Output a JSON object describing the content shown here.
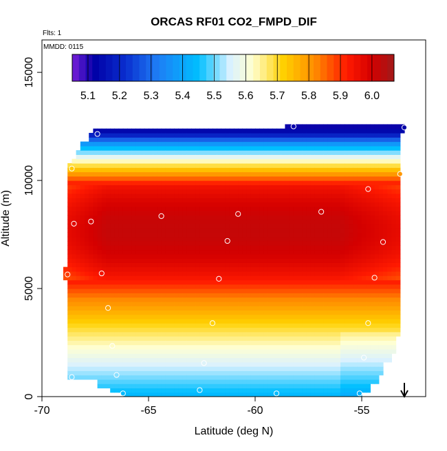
{
  "chart_data": {
    "type": "heatmap",
    "title": "ORCAS RF01 CO2_FMPD_DIF",
    "flights_label": "Flts: 1",
    "date_label": "MMDD: 0115",
    "xlabel": "Latitude (deg N)",
    "ylabel": "Altitude (m)",
    "xlim": [
      -70,
      -52
    ],
    "ylim": [
      0,
      16500
    ],
    "x_ticks": [
      -70,
      -65,
      -60,
      -55
    ],
    "x_tick_labels": [
      "-70",
      "-65",
      "-60",
      "-55"
    ],
    "y_ticks": [
      0,
      5000,
      10000,
      15000
    ],
    "y_tick_labels": [
      "0",
      "5000",
      "10000",
      "15000"
    ],
    "colorbar": {
      "min": 5.05,
      "max": 6.07,
      "ticks": [
        5.1,
        5.2,
        5.3,
        5.4,
        5.5,
        5.6,
        5.7,
        5.8,
        5.9,
        6.0
      ],
      "tick_labels": [
        "5.1",
        "5.2",
        "5.3",
        "5.4",
        "5.5",
        "5.6",
        "5.7",
        "5.8",
        "5.9",
        "6.0"
      ],
      "stops": [
        {
          "v": 5.05,
          "c": "#7a1fd9"
        },
        {
          "v": 5.12,
          "c": "#0000a6"
        },
        {
          "v": 5.22,
          "c": "#0a2fcf"
        },
        {
          "v": 5.32,
          "c": "#1e7cf5"
        },
        {
          "v": 5.45,
          "c": "#00bfff"
        },
        {
          "v": 5.55,
          "c": "#d9f1ff"
        },
        {
          "v": 5.62,
          "c": "#ffffd2"
        },
        {
          "v": 5.72,
          "c": "#ffd000"
        },
        {
          "v": 5.82,
          "c": "#ff8a00"
        },
        {
          "v": 5.92,
          "c": "#ff1a00"
        },
        {
          "v": 6.0,
          "c": "#d40000"
        },
        {
          "v": 6.07,
          "c": "#a01a1a"
        }
      ]
    },
    "sample_points": [
      {
        "lat": -68.8,
        "alt": 5650
      },
      {
        "lat": -68.6,
        "alt": 10550
      },
      {
        "lat": -68.5,
        "alt": 8000
      },
      {
        "lat": -68.6,
        "alt": 900
      },
      {
        "lat": -67.4,
        "alt": 12150
      },
      {
        "lat": -67.7,
        "alt": 8100
      },
      {
        "lat": -67.2,
        "alt": 5700
      },
      {
        "lat": -66.9,
        "alt": 4100
      },
      {
        "lat": -66.7,
        "alt": 2350
      },
      {
        "lat": -66.5,
        "alt": 1000
      },
      {
        "lat": -66.2,
        "alt": 150
      },
      {
        "lat": -64.4,
        "alt": 8350
      },
      {
        "lat": -62.6,
        "alt": 300
      },
      {
        "lat": -62.4,
        "alt": 1550
      },
      {
        "lat": -62.0,
        "alt": 3400
      },
      {
        "lat": -61.7,
        "alt": 5450
      },
      {
        "lat": -61.3,
        "alt": 7200
      },
      {
        "lat": -60.8,
        "alt": 8450
      },
      {
        "lat": -58.2,
        "alt": 12500
      },
      {
        "lat": -59.0,
        "alt": 150
      },
      {
        "lat": -56.9,
        "alt": 8550
      },
      {
        "lat": -55.1,
        "alt": 150
      },
      {
        "lat": -54.9,
        "alt": 1800
      },
      {
        "lat": -54.7,
        "alt": 3400
      },
      {
        "lat": -54.7,
        "alt": 9600
      },
      {
        "lat": -54.4,
        "alt": 5500
      },
      {
        "lat": -54.0,
        "alt": 7150
      },
      {
        "lat": -53.2,
        "alt": 10300
      },
      {
        "lat": -53.0,
        "alt": 12450
      }
    ],
    "arrow_marker": {
      "lat": -53.0,
      "direction": "down"
    }
  }
}
